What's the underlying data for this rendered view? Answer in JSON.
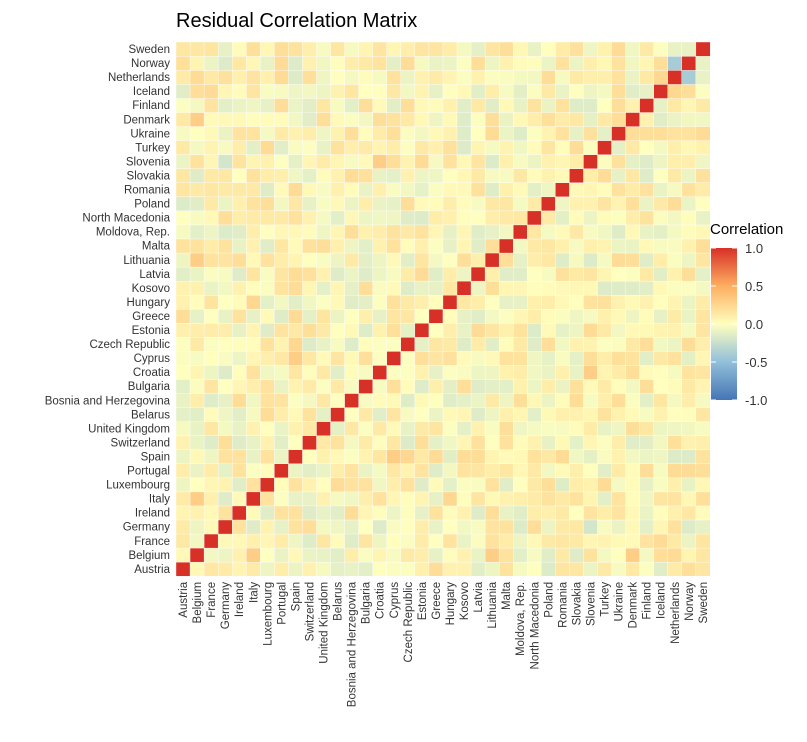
{
  "chart_data": {
    "type": "heatmap",
    "title": "Residual Correlation Matrix",
    "countries": [
      "Austria",
      "Belgium",
      "France",
      "Germany",
      "Ireland",
      "Italy",
      "Luxembourg",
      "Portugal",
      "Spain",
      "Switzerland",
      "United Kingdom",
      "Belarus",
      "Bosnia and Herzegovina",
      "Bulgaria",
      "Croatia",
      "Cyprus",
      "Czech Republic",
      "Estonia",
      "Greece",
      "Hungary",
      "Kosovo",
      "Latvia",
      "Lithuania",
      "Malta",
      "Moldova, Rep.",
      "North Macedonia",
      "Poland",
      "Romania",
      "Slovakia",
      "Slovenia",
      "Turkey",
      "Ukraine",
      "Denmark",
      "Finland",
      "Iceland",
      "Netherlands",
      "Norway",
      "Sweden"
    ],
    "diagonal_value": 1.0,
    "notable_values": [
      {
        "row": "Netherlands",
        "col": "Norway",
        "value": -0.4
      },
      {
        "row": "Norway",
        "col": "Netherlands",
        "value": -0.4
      },
      {
        "row": "Sweden",
        "col": "Norway",
        "value": -0.1
      },
      {
        "row": "Norway",
        "col": "Sweden",
        "value": -0.1
      },
      {
        "row": "Sweden",
        "col": "Netherlands",
        "value": -0.1
      },
      {
        "row": "Netherlands",
        "col": "Sweden",
        "value": -0.1
      },
      {
        "row": "Iceland",
        "col": "Netherlands",
        "value": 0.25
      },
      {
        "row": "Iceland",
        "col": "Norway",
        "value": 0.2
      },
      {
        "row": "Slovenia",
        "col": "Germany",
        "value": -0.2
      },
      {
        "row": "Germany",
        "col": "Slovenia",
        "value": -0.2
      },
      {
        "row": "Italy",
        "col": "Spain",
        "value": -0.1
      },
      {
        "row": "Italy",
        "col": "Switzerland",
        "value": -0.1
      },
      {
        "row": "Spain",
        "col": "Cyprus",
        "value": 0.3
      },
      {
        "row": "Spain",
        "col": "Czech Republic",
        "value": 0.25
      },
      {
        "row": "Slovenia",
        "col": "Croatia",
        "value": 0.3
      },
      {
        "row": "Lithuania",
        "col": "Belgium",
        "value": 0.3
      },
      {
        "row": "Belgium",
        "col": "Italy",
        "value": 0.3
      },
      {
        "row": "Denmark",
        "col": "Belgium",
        "value": 0.3
      },
      {
        "row": "Kosovo",
        "col": "Ukraine",
        "value": -0.15
      },
      {
        "row": "Slovakia",
        "col": "Croatia",
        "value": -0.1
      },
      {
        "row": "Czech Republic",
        "col": "Bosnia and Herzegovina",
        "value": -0.15
      },
      {
        "row": "Hungary",
        "col": "Italy",
        "value": 0.25
      }
    ],
    "legend": {
      "title": "Correlation",
      "position": "right",
      "ticks": [
        "1.0",
        "0.5",
        "0.0",
        "-0.5",
        "-1.0"
      ],
      "tick_values": [
        1.0,
        0.5,
        0.0,
        -0.5,
        -1.0
      ],
      "range": [
        -1.0,
        1.0
      ]
    },
    "colors": {
      "neg": "#4575b4",
      "mid_neg": "#91bfdb",
      "zero": "#ffffbf",
      "mid_pos": "#fdae61",
      "pos": "#d73027",
      "panel_bg": "#fff7cf"
    }
  }
}
